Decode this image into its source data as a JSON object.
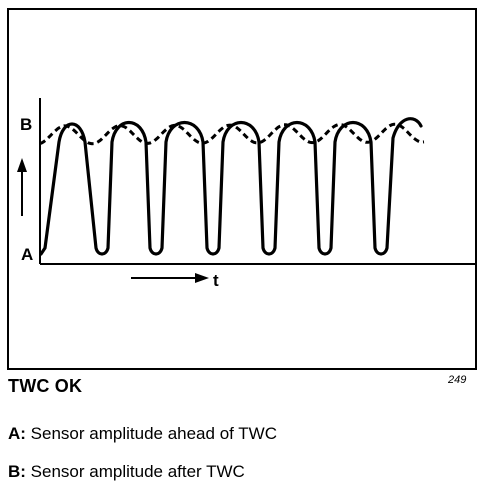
{
  "diagram": {
    "label_b": "B",
    "label_a": "A",
    "time_label": "t"
  },
  "caption": "TWC OK",
  "figure_number": "249",
  "legend": [
    {
      "key": "A:",
      "text": " Sensor amplitude ahead of TWC"
    },
    {
      "key": "B:",
      "text": " Sensor amplitude after TWC"
    }
  ],
  "colors": {
    "ink": "#000000",
    "background": "#ffffff"
  }
}
